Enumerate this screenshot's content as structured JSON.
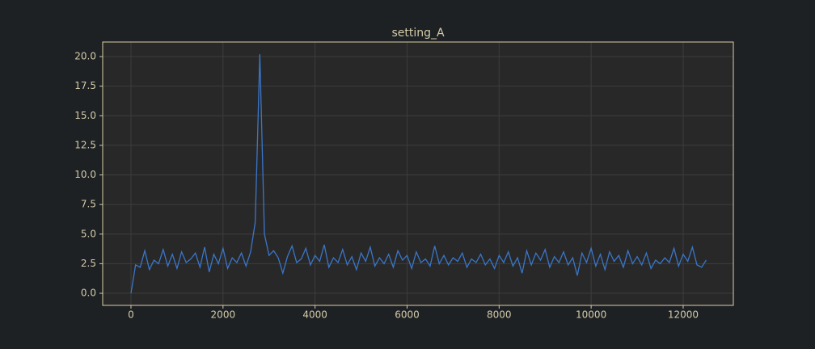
{
  "chart_data": {
    "type": "line",
    "title": "setting_A",
    "x": [
      0,
      100,
      200,
      300,
      400,
      500,
      600,
      700,
      800,
      900,
      1000,
      1100,
      1200,
      1300,
      1400,
      1500,
      1600,
      1700,
      1800,
      1900,
      2000,
      2100,
      2200,
      2300,
      2400,
      2500,
      2600,
      2700,
      2800,
      2900,
      3000,
      3100,
      3200,
      3300,
      3400,
      3500,
      3600,
      3700,
      3800,
      3900,
      4000,
      4100,
      4200,
      4300,
      4400,
      4500,
      4600,
      4700,
      4800,
      4900,
      5000,
      5100,
      5200,
      5300,
      5400,
      5500,
      5600,
      5700,
      5800,
      5900,
      6000,
      6100,
      6200,
      6300,
      6400,
      6500,
      6600,
      6700,
      6800,
      6900,
      7000,
      7100,
      7200,
      7300,
      7400,
      7500,
      7600,
      7700,
      7800,
      7900,
      8000,
      8100,
      8200,
      8300,
      8400,
      8500,
      8600,
      8700,
      8800,
      8900,
      9000,
      9100,
      9200,
      9300,
      9400,
      9500,
      9600,
      9700,
      9800,
      9900,
      10000,
      10100,
      10200,
      10300,
      10400,
      10500,
      10600,
      10700,
      10800,
      10900,
      11000,
      11100,
      11200,
      11300,
      11400,
      11500,
      11600,
      11700,
      11800,
      11900,
      12000,
      12100,
      12200,
      12300,
      12400,
      12500
    ],
    "values": [
      0.0,
      2.4,
      2.2,
      3.6,
      2.0,
      2.8,
      2.5,
      3.7,
      2.3,
      3.3,
      2.1,
      3.5,
      2.6,
      2.9,
      3.4,
      2.2,
      3.9,
      1.8,
      3.3,
      2.5,
      3.8,
      2.1,
      3.0,
      2.6,
      3.4,
      2.3,
      3.5,
      6.0,
      20.2,
      5.0,
      3.2,
      3.6,
      3.0,
      1.7,
      3.1,
      4.0,
      2.6,
      2.9,
      3.8,
      2.4,
      3.2,
      2.7,
      4.1,
      2.2,
      3.0,
      2.6,
      3.7,
      2.4,
      3.1,
      2.0,
      3.4,
      2.7,
      3.9,
      2.3,
      3.0,
      2.5,
      3.3,
      2.2,
      3.6,
      2.8,
      3.2,
      2.1,
      3.5,
      2.6,
      2.9,
      2.3,
      4.0,
      2.5,
      3.2,
      2.4,
      3.0,
      2.7,
      3.4,
      2.2,
      2.9,
      2.6,
      3.3,
      2.4,
      2.9,
      2.1,
      3.2,
      2.6,
      3.5,
      2.3,
      3.0,
      1.7,
      3.6,
      2.4,
      3.4,
      2.8,
      3.7,
      2.2,
      3.1,
      2.6,
      3.5,
      2.4,
      3.0,
      1.5,
      3.4,
      2.6,
      3.8,
      2.3,
      3.3,
      2.0,
      3.5,
      2.7,
      3.2,
      2.2,
      3.6,
      2.5,
      3.1,
      2.4,
      3.4,
      2.1,
      2.8,
      2.5,
      3.0,
      2.6,
      3.8,
      2.3,
      3.3,
      2.7,
      3.9,
      2.4,
      2.2,
      2.8
    ],
    "color": "#3a76c8",
    "xlim": [
      -615,
      13090
    ],
    "xticks": [
      0,
      2000,
      4000,
      6000,
      8000,
      10000,
      12000
    ],
    "ylim": [
      -1.02,
      21.23
    ],
    "yticks": [
      {
        "value": 0,
        "label": "0.0"
      },
      2.5,
      {
        "value": 5,
        "label": "5.0"
      },
      7.5,
      {
        "value": 10,
        "label": "10.0"
      },
      12.5,
      {
        "value": 15,
        "label": "15.0"
      },
      17.5,
      {
        "value": 20,
        "label": "20.0"
      }
    ],
    "grid": true
  }
}
